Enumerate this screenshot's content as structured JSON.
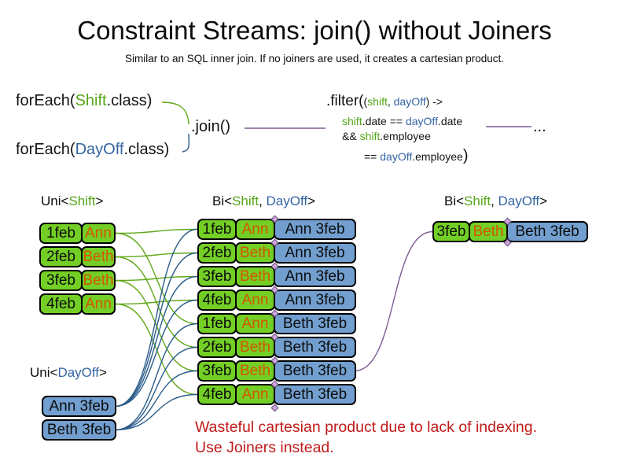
{
  "title": "Constraint Streams: join() without Joiners",
  "subtitle": "Similar to an SQL inner join. If no joiners are used, it creates a cartesian product.",
  "code": {
    "foreach_shift": {
      "fn": "forEach(",
      "cls": "Shift",
      "end": ".class)"
    },
    "foreach_dayoff": {
      "fn": "forEach(",
      "cls": "DayOff",
      "end": ".class)"
    },
    "join": ".join()",
    "filter": {
      "head": ".filter(",
      "args_open": "(",
      "arg1": "shift",
      "comma": ", ",
      "arg2": "dayOff",
      "args_close": ") ->",
      "l2_a": "shift",
      "l2_b": ".date == ",
      "l2_c": "dayOff",
      "l2_d": ".date",
      "l3_a": "&& ",
      "l3_b": "shift",
      "l3_c": ".employee",
      "l4_a": "== ",
      "l4_b": "dayOff",
      "l4_c": ".employee",
      "l4_close": ")"
    },
    "ellipsis": "..."
  },
  "labels": {
    "uni_shift": {
      "pre": "Uni<",
      "shift": "Shift",
      "post": ">"
    },
    "bi_mid": {
      "pre": "Bi<",
      "shift": "Shift",
      "sep": ", ",
      "dayoff": "DayOff",
      "post": ">"
    },
    "bi_right": {
      "pre": "Bi<",
      "shift": "Shift",
      "sep": ", ",
      "dayoff": "DayOff",
      "post": ">"
    },
    "uni_dayoff": {
      "pre": "Uni<",
      "dayoff": "DayOff",
      "post": ">"
    }
  },
  "shift_table": {
    "rows": [
      {
        "date": "1feb",
        "emp": "Ann"
      },
      {
        "date": "2feb",
        "emp": "Beth"
      },
      {
        "date": "3feb",
        "emp": "Beth"
      },
      {
        "date": "4feb",
        "emp": "Ann"
      }
    ]
  },
  "pair_table": {
    "rows": [
      {
        "date": "1feb",
        "emp": "Ann",
        "dayoff": "Ann 3feb"
      },
      {
        "date": "2feb",
        "emp": "Beth",
        "dayoff": "Ann 3feb"
      },
      {
        "date": "3feb",
        "emp": "Beth",
        "dayoff": "Ann 3feb"
      },
      {
        "date": "4feb",
        "emp": "Ann",
        "dayoff": "Ann 3feb"
      },
      {
        "date": "1feb",
        "emp": "Ann",
        "dayoff": "Beth 3feb"
      },
      {
        "date": "2feb",
        "emp": "Beth",
        "dayoff": "Beth 3feb"
      },
      {
        "date": "3feb",
        "emp": "Beth",
        "dayoff": "Beth 3feb"
      },
      {
        "date": "4feb",
        "emp": "Ann",
        "dayoff": "Beth 3feb"
      }
    ]
  },
  "dayoff_table": {
    "rows": [
      {
        "label": "Ann 3feb"
      },
      {
        "label": "Beth 3feb"
      }
    ]
  },
  "result_table": {
    "rows": [
      {
        "date": "3feb",
        "emp": "Beth",
        "dayoff": "Beth 3feb"
      }
    ]
  },
  "note": {
    "line1": "Wasteful cartesian product due to lack of indexing.",
    "line2": "Use Joiners instead."
  },
  "colors": {
    "cell_green": "#73CF25",
    "cell_blue": "#729FCF",
    "employee_orange": "#D45500",
    "code_green": "#55A519",
    "code_blue": "#3465A4",
    "line_green": "#5FA818",
    "line_blue": "#2A5C8A",
    "line_purple": "#7D5C92",
    "note_red": "#C01A1A"
  },
  "connections": {
    "shift_to_pair": [
      [
        1,
        1
      ],
      [
        1,
        5
      ],
      [
        2,
        2
      ],
      [
        2,
        6
      ],
      [
        3,
        3
      ],
      [
        3,
        7
      ],
      [
        4,
        4
      ],
      [
        4,
        8
      ]
    ],
    "dayoff_to_pair": [
      [
        1,
        1
      ],
      [
        1,
        2
      ],
      [
        1,
        3
      ],
      [
        1,
        4
      ],
      [
        2,
        5
      ],
      [
        2,
        6
      ],
      [
        2,
        7
      ],
      [
        2,
        8
      ]
    ],
    "pair_to_result": [
      [
        7,
        1
      ]
    ]
  }
}
